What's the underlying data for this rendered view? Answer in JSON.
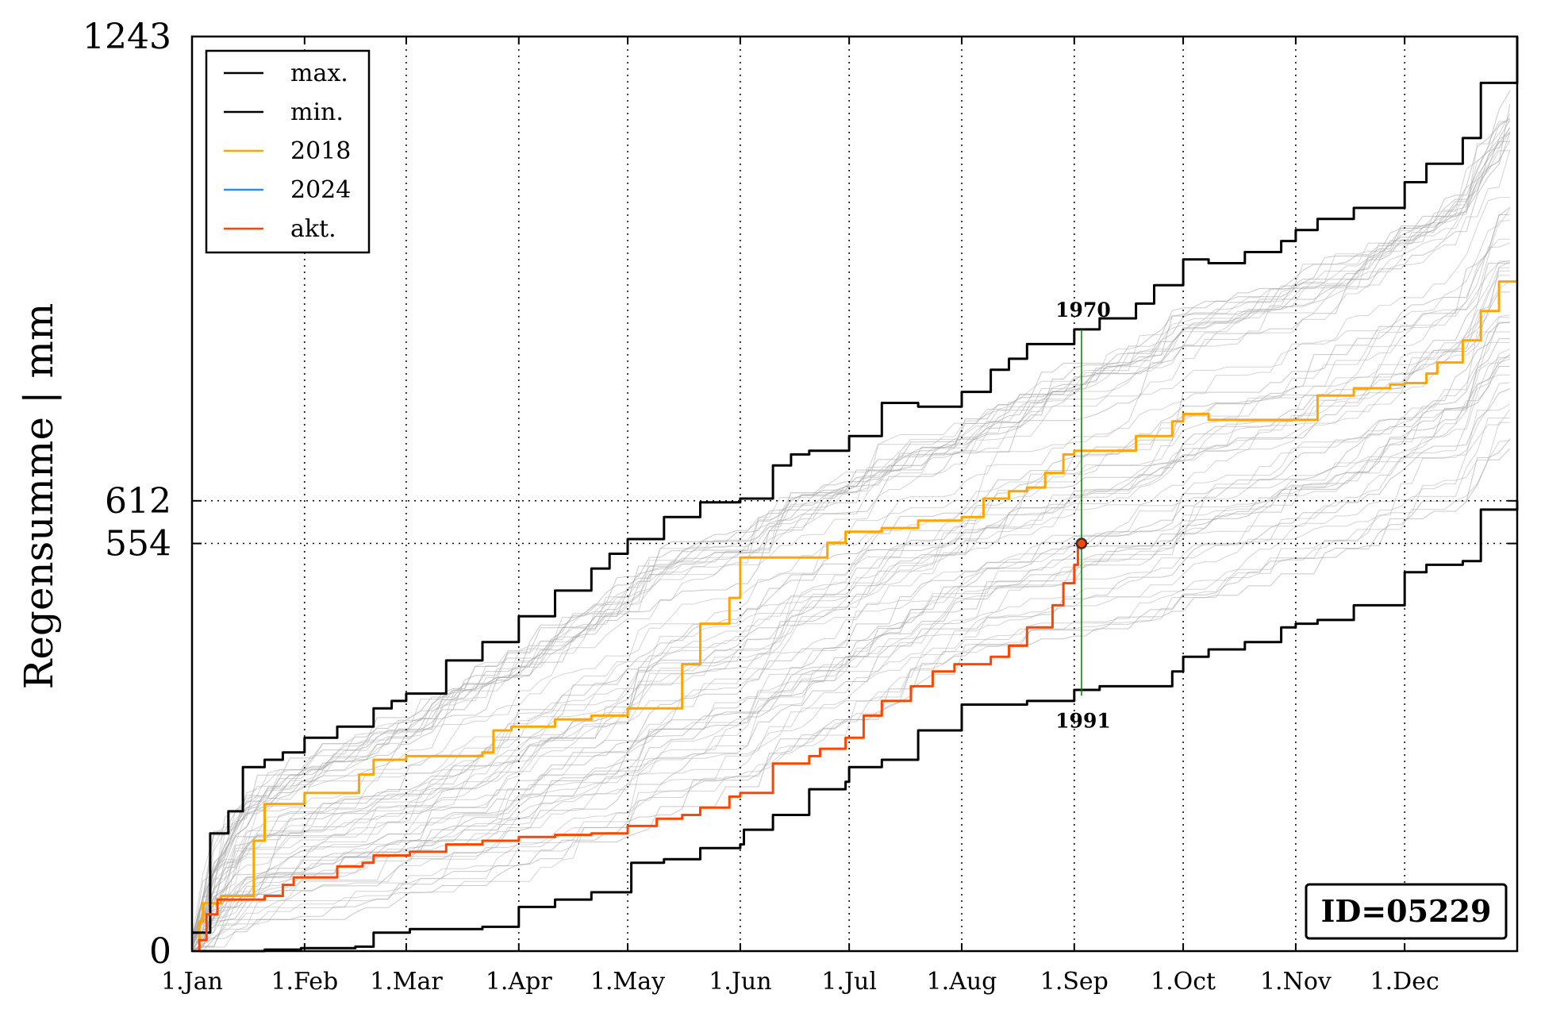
{
  "chart_data": {
    "type": "line",
    "xlabel": "",
    "ylabel": "Regensumme | mm",
    "ylim": [
      0,
      1243
    ],
    "xlim": [
      0,
      365
    ],
    "x_tick_labels": [
      "1.Jan",
      "1.Feb",
      "1.Mar",
      "1.Apr",
      "1.May",
      "1.Jun",
      "1.Jul",
      "1.Aug",
      "1.Sep",
      "1.Oct",
      "1.Nov",
      "1.Dec"
    ],
    "x_tick_days": [
      0,
      31,
      59,
      90,
      120,
      151,
      181,
      212,
      243,
      273,
      304,
      334
    ],
    "y_tick_labels": [
      "0",
      "554",
      "612",
      "1243"
    ],
    "y_tick_values": [
      0,
      554,
      612,
      1243
    ],
    "grid": "dotted",
    "legend_position": "top-left",
    "legend": [
      "max.",
      "min.",
      "2018",
      "2024",
      "akt."
    ],
    "colors": {
      "max": "#000000",
      "min": "#000000",
      "y2018": "#ffa500",
      "y2024": "#1e90ff",
      "akt": "#ff4500",
      "background_years": "#b0b0b0",
      "marker_line": "#008000"
    },
    "series": [
      {
        "name": "max.",
        "x": [
          0,
          5,
          10,
          14,
          20,
          25,
          31,
          40,
          50,
          55,
          59,
          70,
          80,
          90,
          100,
          110,
          115,
          120,
          130,
          140,
          151,
          160,
          165,
          170,
          181,
          190,
          200,
          212,
          220,
          225,
          230,
          243,
          250,
          260,
          265,
          273,
          280,
          290,
          300,
          304,
          310,
          320,
          334,
          340,
          350,
          355,
          365
        ],
        "y": [
          25,
          160,
          190,
          250,
          260,
          270,
          290,
          305,
          330,
          340,
          350,
          395,
          420,
          455,
          490,
          520,
          540,
          560,
          590,
          610,
          615,
          660,
          675,
          680,
          700,
          745,
          740,
          760,
          790,
          805,
          825,
          845,
          860,
          880,
          905,
          940,
          935,
          950,
          965,
          980,
          995,
          1010,
          1045,
          1070,
          1105,
          1180,
          1243
        ]
      },
      {
        "name": "min.",
        "x": [
          0,
          10,
          20,
          30,
          40,
          45,
          50,
          60,
          70,
          80,
          90,
          100,
          110,
          120,
          121,
          130,
          140,
          151,
          152,
          160,
          170,
          180,
          181,
          190,
          200,
          212,
          230,
          243,
          250,
          260,
          270,
          273,
          280,
          290,
          300,
          304,
          310,
          320,
          334,
          340,
          350,
          355,
          365
        ],
        "y": [
          0,
          0,
          2,
          4,
          4,
          6,
          25,
          30,
          30,
          33,
          60,
          70,
          80,
          80,
          120,
          125,
          140,
          145,
          165,
          185,
          220,
          230,
          250,
          260,
          300,
          335,
          340,
          355,
          360,
          360,
          380,
          400,
          410,
          420,
          440,
          445,
          450,
          470,
          515,
          525,
          530,
          600,
          612
        ]
      },
      {
        "name": "2018",
        "x": [
          0,
          2,
          3,
          8,
          14,
          17,
          20,
          25,
          31,
          40,
          46,
          50,
          59,
          70,
          80,
          83,
          88,
          90,
          100,
          110,
          120,
          130,
          135,
          140,
          148,
          151,
          160,
          172,
          175,
          180,
          185,
          190,
          200,
          212,
          218,
          225,
          230,
          235,
          240,
          243,
          250,
          260,
          270,
          273,
          280,
          300,
          310,
          320,
          330,
          334,
          340,
          343,
          345,
          350,
          355,
          360,
          365
        ],
        "y": [
          0,
          40,
          65,
          75,
          75,
          150,
          200,
          200,
          215,
          215,
          240,
          260,
          265,
          265,
          270,
          300,
          305,
          305,
          315,
          320,
          330,
          330,
          390,
          445,
          480,
          535,
          535,
          535,
          555,
          570,
          570,
          575,
          585,
          590,
          615,
          625,
          630,
          650,
          675,
          680,
          680,
          700,
          720,
          730,
          722,
          722,
          755,
          765,
          770,
          772,
          785,
          800,
          800,
          830,
          870,
          910,
          912
        ]
      },
      {
        "name": "2024",
        "x": [],
        "y": []
      },
      {
        "name": "akt.",
        "x": [
          0,
          2,
          4,
          7,
          15,
          20,
          25,
          28,
          35,
          40,
          45,
          47,
          50,
          55,
          60,
          70,
          80,
          90,
          100,
          110,
          120,
          128,
          135,
          140,
          148,
          151,
          160,
          170,
          173,
          180,
          185,
          190,
          198,
          204,
          210,
          220,
          225,
          230,
          237,
          240,
          243,
          244,
          245
        ],
        "y": [
          0,
          15,
          50,
          70,
          70,
          75,
          90,
          100,
          100,
          115,
          115,
          120,
          130,
          130,
          135,
          145,
          150,
          155,
          158,
          160,
          170,
          180,
          185,
          195,
          210,
          215,
          255,
          265,
          275,
          290,
          320,
          340,
          360,
          380,
          390,
          400,
          415,
          440,
          470,
          500,
          525,
          550,
          554
        ]
      }
    ],
    "marker": {
      "x": 245,
      "y": 554,
      "label_upper": "1970",
      "label_lower": "1991",
      "upper_y": 845,
      "lower_y": 347
    },
    "id_label": "ID=05229"
  }
}
